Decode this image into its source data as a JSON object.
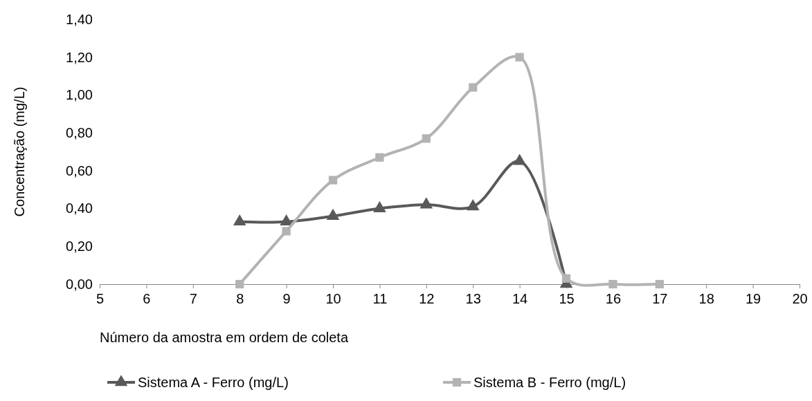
{
  "chart_data": {
    "type": "line",
    "xlabel": "Número da amostra em ordem de coleta",
    "ylabel": "Concentração (mg/L)",
    "xlim": [
      5,
      20
    ],
    "xticks": [
      5,
      6,
      7,
      8,
      9,
      10,
      11,
      12,
      13,
      14,
      15,
      16,
      17,
      18,
      19,
      20
    ],
    "ylim": [
      0,
      1.4
    ],
    "yticks": [
      {
        "value": 0,
        "label": "0,00"
      },
      {
        "value": 0.2,
        "label": "0,20"
      },
      {
        "value": 0.4,
        "label": "0,40"
      },
      {
        "value": 0.6,
        "label": "0,60"
      },
      {
        "value": 0.8,
        "label": "0,80"
      },
      {
        "value": 1.0,
        "label": "1,00"
      },
      {
        "value": 1.2,
        "label": "1,20"
      },
      {
        "value": 1.4,
        "label": "1,40"
      }
    ],
    "grid": false,
    "legend": "bottom",
    "series": [
      {
        "name": "Sistema A - Ferro (mg/L)",
        "color": "#595959",
        "marker": "triangle",
        "x": [
          8,
          9,
          10,
          11,
          12,
          13,
          14,
          15
        ],
        "values": [
          0.33,
          0.33,
          0.36,
          0.4,
          0.42,
          0.41,
          0.65,
          0.0
        ]
      },
      {
        "name": "Sistema B - Ferro (mg/L)",
        "color": "#b3b3b3",
        "marker": "square",
        "x": [
          8,
          9,
          10,
          11,
          12,
          13,
          14,
          15,
          16,
          17
        ],
        "values": [
          0.0,
          0.28,
          0.55,
          0.67,
          0.77,
          1.04,
          1.2,
          0.03,
          0.0,
          0.0
        ]
      }
    ]
  }
}
